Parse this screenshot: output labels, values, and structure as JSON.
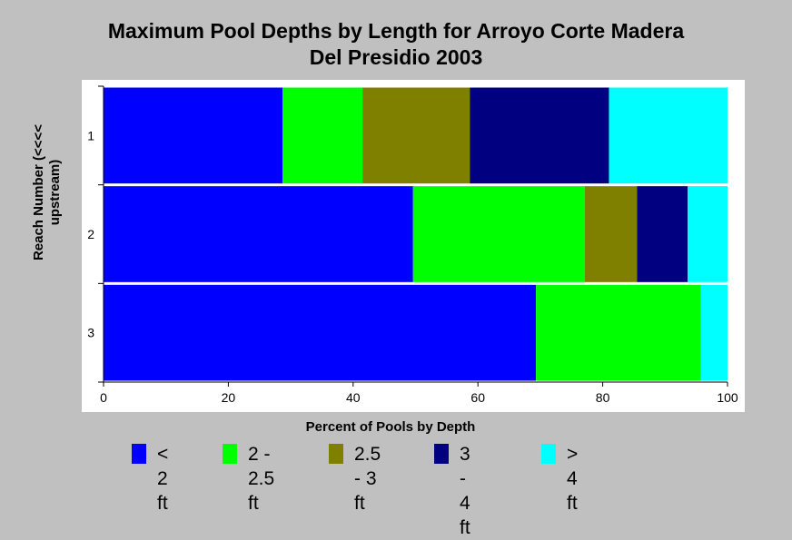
{
  "chart_data": {
    "type": "bar",
    "orientation": "horizontal",
    "stacked": true,
    "title_lines": [
      "Maximum Pool Depths by Length for Arroyo Corte Madera",
      "Del Presidio 2003"
    ],
    "xlabel": "Percent of Pools by Depth",
    "ylabel_lines": [
      "Reach Number (<<<<",
      "upstream)"
    ],
    "xlim": [
      0,
      100
    ],
    "x_ticks": [
      "0",
      "20",
      "40",
      "60",
      "80",
      "100"
    ],
    "categories": [
      "1",
      "2",
      "3"
    ],
    "legend_placement": "bottom",
    "grid": false,
    "series": [
      {
        "name": "< 2 ft",
        "label_lines": [
          "< 2 ft"
        ],
        "color": "#0000ff",
        "values": [
          28.7,
          49.6,
          69.3
        ]
      },
      {
        "name": "2 - 2.5 ft",
        "label_lines": [
          "2 - 2.5",
          "ft"
        ],
        "color": "#00ff00",
        "values": [
          12.8,
          27.5,
          26.4
        ]
      },
      {
        "name": "2.5 - 3 ft",
        "label_lines": [
          "2.5 - 3",
          "ft"
        ],
        "color": "#808000",
        "values": [
          17.2,
          8.4,
          0
        ]
      },
      {
        "name": "3 - 4 ft",
        "label_lines": [
          "3 - 4 ft"
        ],
        "color": "#000080",
        "values": [
          22.3,
          8.1,
          0
        ]
      },
      {
        "name": "> 4 ft",
        "label_lines": [
          "> 4 ft"
        ],
        "color": "#00ffff",
        "values": [
          19.0,
          6.4,
          4.3
        ]
      }
    ]
  }
}
